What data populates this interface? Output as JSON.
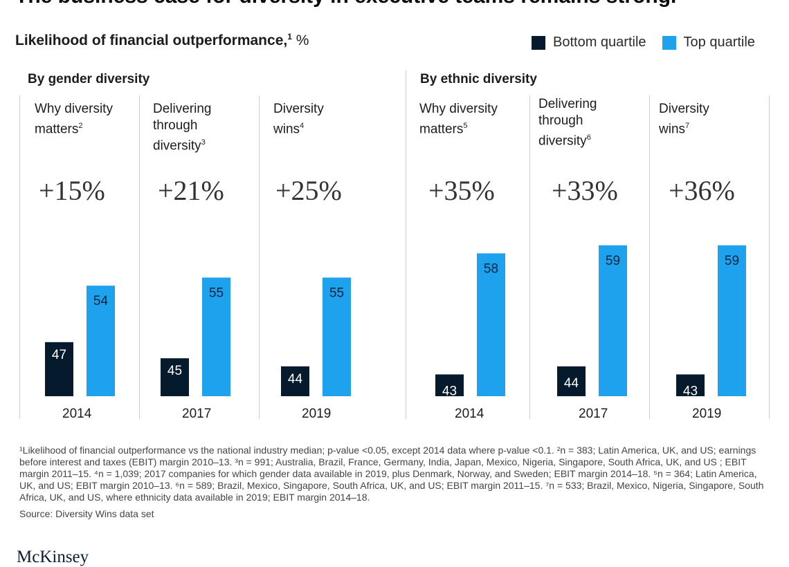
{
  "headline": "The business case for diversity in executive teams remains strong.",
  "subtitle": {
    "text": "Likelihood of financial outperformance,",
    "sup": "1",
    "unit": "%"
  },
  "legend": {
    "bottom": "Bottom quartile",
    "top": "Top quartile"
  },
  "colors": {
    "bottom": "#061a2e",
    "top": "#1fa2ee"
  },
  "groups": [
    {
      "title": "By gender diversity"
    },
    {
      "title": "By ethnic diversity"
    }
  ],
  "panels": [
    {
      "label": [
        "Why diversity",
        "matters"
      ],
      "sup": "2",
      "pct": "+15%",
      "year": "2014"
    },
    {
      "label": [
        "Delivering",
        "through",
        "diversity"
      ],
      "sup": "3",
      "pct": "+21%",
      "year": "2017"
    },
    {
      "label": [
        "Diversity",
        "wins"
      ],
      "sup": "4",
      "pct": "+25%",
      "year": "2019"
    },
    {
      "label": [
        "Why diversity",
        "matters"
      ],
      "sup": "5",
      "pct": "+35%",
      "year": "2014"
    },
    {
      "label": [
        "Delivering",
        "through",
        "diversity"
      ],
      "sup": "6",
      "pct": "+33%",
      "year": "2017"
    },
    {
      "label": [
        "Diversity",
        "wins"
      ],
      "sup": "7",
      "pct": "+36%",
      "year": "2019"
    }
  ],
  "chart_data": {
    "type": "bar",
    "categories": [
      "2014",
      "2017",
      "2019",
      "2014",
      "2017",
      "2019"
    ],
    "series": [
      {
        "name": "Bottom quartile",
        "values": [
          47,
          45,
          44,
          43,
          44,
          43
        ]
      },
      {
        "name": "Top quartile",
        "values": [
          54,
          55,
          55,
          58,
          59,
          59
        ]
      }
    ]
  },
  "footnote": "¹Likelihood of financial outperformance vs the national industry median; p-value <0.05, except 2014 data where p-value <0.1.  ²n = 383; Latin America, UK, and US; earnings before interest and taxes (EBIT) margin 2010–13. ³n = 991; Australia, Brazil, France, Germany, India, Japan, Mexico, Nigeria, Singapore, South Africa, UK, and US ; EBIT margin 2011–15. ⁴n = 1,039; 2017 companies for which gender data available in 2019, plus Denmark, Norway, and Sweden;  EBIT margin 2014–18. ⁵n = 364; Latin America, UK, and US; EBIT margin 2010–13. ⁶n = 589; Brazil, Mexico, Singapore, South Africa, UK, and US; EBIT margin 2011–15. ⁷n = 533; Brazil, Mexico, Nigeria, Singapore, South Africa, UK, and US, where ethnicity data available in 2019; EBIT margin 2014–18.",
  "source": "Source: Diversity Wins data set",
  "logo": "McKinsey"
}
